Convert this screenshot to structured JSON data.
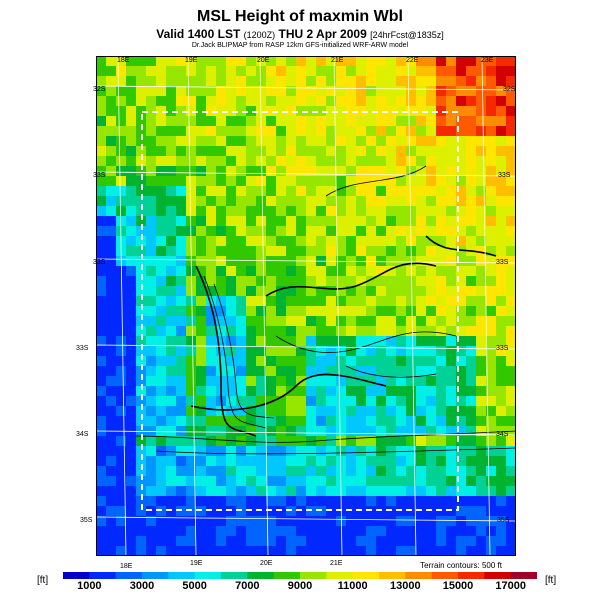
{
  "header": {
    "title": "MSL Height of maxmin Wbl",
    "subtitle_main": "Valid 1400 LST",
    "subtitle_utc": "(1200Z)",
    "subtitle_date": "THU 2 Apr 2009",
    "subtitle_forecast": "[24hrFcst@1835z]",
    "credit": "Dr.Jack BLIPMAP from RASP 12km GFS-initialized WRF-ARW model"
  },
  "map": {
    "lon_labels_top": [
      "18E",
      "19E",
      "20E",
      "21E",
      "22E",
      "23E"
    ],
    "lon_labels_bottom": [
      "18E",
      "19E",
      "20E",
      "21E"
    ],
    "lat_labels_left": [
      "32S",
      "33S",
      "33S",
      "33S",
      "34S",
      "35S"
    ],
    "lat_labels_right": [
      "32S",
      "33S",
      "33S",
      "33S",
      "34S",
      "35S"
    ],
    "terrain_note": "Terrain contours: 500 ft"
  },
  "colorbar": {
    "unit_left": "[ft]",
    "unit_right": "[ft]",
    "labels": [
      "1000",
      "3000",
      "5000",
      "7000",
      "9000",
      "11000",
      "13000",
      "15000",
      "17000"
    ],
    "colors": [
      "#0000c8",
      "#0028ff",
      "#0064ff",
      "#0096ff",
      "#00c8ff",
      "#00f0e6",
      "#00d296",
      "#00b432",
      "#32c800",
      "#96e600",
      "#dcf000",
      "#ffe600",
      "#ffbe00",
      "#ff8c00",
      "#ff5a00",
      "#f52800",
      "#d20000",
      "#a00028"
    ]
  }
}
